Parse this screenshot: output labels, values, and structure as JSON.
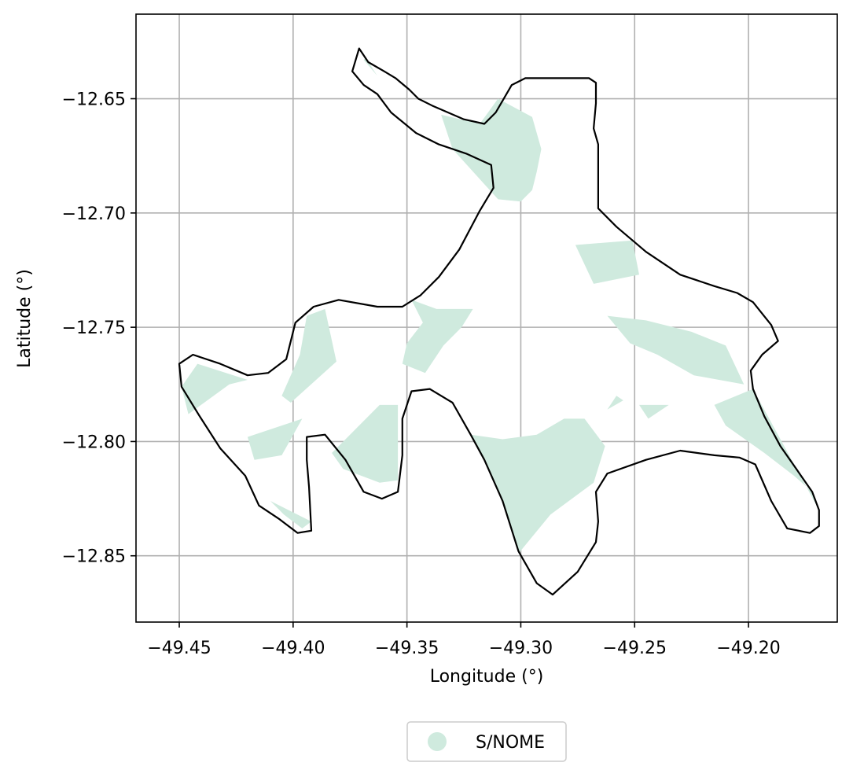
{
  "chart_data": {
    "type": "map",
    "xlabel": "Longitude (°)",
    "ylabel": "Latitude (°)",
    "xlim": [
      -49.469,
      -49.161
    ],
    "ylim": [
      -12.879,
      -12.613
    ],
    "x_ticks": [
      -49.45,
      -49.4,
      -49.35,
      -49.3,
      -49.25,
      -49.2
    ],
    "x_tick_labels": [
      "−49.45",
      "−49.40",
      "−49.35",
      "−49.30",
      "−49.25",
      "−49.20"
    ],
    "y_ticks": [
      -12.65,
      -12.7,
      -12.75,
      -12.8,
      -12.85
    ],
    "y_tick_labels": [
      "−12.65",
      "−12.70",
      "−12.75",
      "−12.80",
      "−12.85"
    ],
    "grid": true,
    "legend": {
      "placement": "bottom-center",
      "entries": [
        {
          "label": "S/NOME",
          "color": "#cfeade"
        }
      ]
    },
    "colors": {
      "fill": "#cfeade",
      "boundary": "#000000",
      "grid": "#b0b0b0"
    },
    "boundary": [
      [
        -49.371,
        -12.628
      ],
      [
        -49.367,
        -12.634
      ],
      [
        -49.36,
        -12.638
      ],
      [
        -49.355,
        -12.641
      ],
      [
        -49.349,
        -12.646
      ],
      [
        -49.345,
        -12.65
      ],
      [
        -49.339,
        -12.653
      ],
      [
        -49.332,
        -12.656
      ],
      [
        -49.325,
        -12.659
      ],
      [
        -49.316,
        -12.661
      ],
      [
        -49.311,
        -12.656
      ],
      [
        -49.304,
        -12.644
      ],
      [
        -49.298,
        -12.641
      ],
      [
        -49.27,
        -12.641
      ],
      [
        -49.267,
        -12.643
      ],
      [
        -49.267,
        -12.652
      ],
      [
        -49.268,
        -12.663
      ],
      [
        -49.266,
        -12.67
      ],
      [
        -49.266,
        -12.687
      ],
      [
        -49.266,
        -12.698
      ],
      [
        -49.258,
        -12.706
      ],
      [
        -49.245,
        -12.717
      ],
      [
        -49.23,
        -12.727
      ],
      [
        -49.215,
        -12.732
      ],
      [
        -49.205,
        -12.735
      ],
      [
        -49.198,
        -12.739
      ],
      [
        -49.19,
        -12.749
      ],
      [
        -49.187,
        -12.756
      ],
      [
        -49.194,
        -12.762
      ],
      [
        -49.199,
        -12.769
      ],
      [
        -49.198,
        -12.777
      ],
      [
        -49.193,
        -12.789
      ],
      [
        -49.186,
        -12.802
      ],
      [
        -49.179,
        -12.812
      ],
      [
        -49.172,
        -12.822
      ],
      [
        -49.169,
        -12.83
      ],
      [
        -49.169,
        -12.837
      ],
      [
        -49.173,
        -12.84
      ],
      [
        -49.183,
        -12.838
      ],
      [
        -49.19,
        -12.826
      ],
      [
        -49.197,
        -12.81
      ],
      [
        -49.204,
        -12.807
      ],
      [
        -49.215,
        -12.806
      ],
      [
        -49.23,
        -12.804
      ],
      [
        -49.245,
        -12.808
      ],
      [
        -49.262,
        -12.814
      ],
      [
        -49.267,
        -12.822
      ],
      [
        -49.266,
        -12.835
      ],
      [
        -49.267,
        -12.844
      ],
      [
        -49.275,
        -12.857
      ],
      [
        -49.286,
        -12.867
      ],
      [
        -49.293,
        -12.862
      ],
      [
        -49.301,
        -12.848
      ],
      [
        -49.308,
        -12.826
      ],
      [
        -49.316,
        -12.808
      ],
      [
        -49.322,
        -12.797
      ],
      [
        -49.33,
        -12.783
      ],
      [
        -49.34,
        -12.777
      ],
      [
        -49.348,
        -12.778
      ],
      [
        -49.352,
        -12.79
      ],
      [
        -49.352,
        -12.806
      ],
      [
        -49.354,
        -12.822
      ],
      [
        -49.361,
        -12.825
      ],
      [
        -49.369,
        -12.822
      ],
      [
        -49.377,
        -12.808
      ],
      [
        -49.386,
        -12.797
      ],
      [
        -49.394,
        -12.798
      ],
      [
        -49.394,
        -12.808
      ],
      [
        -49.393,
        -12.82
      ],
      [
        -49.392,
        -12.839
      ],
      [
        -49.398,
        -12.84
      ],
      [
        -49.406,
        -12.834
      ],
      [
        -49.415,
        -12.828
      ],
      [
        -49.421,
        -12.815
      ],
      [
        -49.432,
        -12.803
      ],
      [
        -49.441,
        -12.789
      ],
      [
        -49.449,
        -12.776
      ],
      [
        -49.45,
        -12.766
      ],
      [
        -49.444,
        -12.762
      ],
      [
        -49.432,
        -12.766
      ],
      [
        -49.42,
        -12.771
      ],
      [
        -49.411,
        -12.77
      ],
      [
        -49.403,
        -12.764
      ],
      [
        -49.399,
        -12.748
      ],
      [
        -49.391,
        -12.741
      ],
      [
        -49.38,
        -12.738
      ],
      [
        -49.363,
        -12.741
      ],
      [
        -49.352,
        -12.741
      ],
      [
        -49.344,
        -12.736
      ],
      [
        -49.336,
        -12.728
      ],
      [
        -49.327,
        -12.716
      ],
      [
        -49.318,
        -12.699
      ],
      [
        -49.312,
        -12.689
      ],
      [
        -49.313,
        -12.679
      ],
      [
        -49.324,
        -12.674
      ],
      [
        -49.336,
        -12.67
      ],
      [
        -49.346,
        -12.665
      ],
      [
        -49.357,
        -12.656
      ],
      [
        -49.363,
        -12.648
      ],
      [
        -49.369,
        -12.644
      ],
      [
        -49.374,
        -12.638
      ]
    ],
    "regions": [
      [
        [
          -49.368,
          -12.632
        ],
        [
          -49.365,
          -12.637
        ],
        [
          -49.363,
          -12.64
        ],
        [
          -49.369,
          -12.633
        ]
      ],
      [
        [
          -49.335,
          -12.657
        ],
        [
          -49.318,
          -12.661
        ],
        [
          -49.31,
          -12.65
        ],
        [
          -49.295,
          -12.658
        ],
        [
          -49.291,
          -12.672
        ],
        [
          -49.293,
          -12.682
        ],
        [
          -49.295,
          -12.69
        ],
        [
          -49.3,
          -12.695
        ],
        [
          -49.31,
          -12.694
        ],
        [
          -49.33,
          -12.672
        ]
      ],
      [
        [
          -49.276,
          -12.714
        ],
        [
          -49.251,
          -12.712
        ],
        [
          -49.248,
          -12.727
        ],
        [
          -49.268,
          -12.731
        ]
      ],
      [
        [
          -49.348,
          -12.738
        ],
        [
          -49.343,
          -12.748
        ],
        [
          -49.35,
          -12.757
        ],
        [
          -49.352,
          -12.766
        ],
        [
          -49.342,
          -12.77
        ],
        [
          -49.334,
          -12.758
        ],
        [
          -49.326,
          -12.75
        ],
        [
          -49.321,
          -12.742
        ],
        [
          -49.337,
          -12.742
        ]
      ],
      [
        [
          -49.394,
          -12.745
        ],
        [
          -49.397,
          -12.762
        ],
        [
          -49.405,
          -12.78
        ],
        [
          -49.401,
          -12.783
        ],
        [
          -49.381,
          -12.765
        ],
        [
          -49.386,
          -12.742
        ]
      ],
      [
        [
          -49.442,
          -12.766
        ],
        [
          -49.449,
          -12.776
        ],
        [
          -49.446,
          -12.788
        ],
        [
          -49.428,
          -12.775
        ],
        [
          -49.42,
          -12.773
        ]
      ],
      [
        [
          -49.362,
          -12.784
        ],
        [
          -49.354,
          -12.784
        ],
        [
          -49.354,
          -12.817
        ],
        [
          -49.362,
          -12.818
        ],
        [
          -49.378,
          -12.812
        ],
        [
          -49.383,
          -12.805
        ]
      ],
      [
        [
          -49.42,
          -12.798
        ],
        [
          -49.396,
          -12.79
        ],
        [
          -49.405,
          -12.806
        ],
        [
          -49.417,
          -12.808
        ]
      ],
      [
        [
          -49.41,
          -12.826
        ],
        [
          -49.404,
          -12.832
        ],
        [
          -49.396,
          -12.838
        ],
        [
          -49.392,
          -12.835
        ]
      ],
      [
        [
          -49.322,
          -12.797
        ],
        [
          -49.308,
          -12.799
        ],
        [
          -49.293,
          -12.797
        ],
        [
          -49.281,
          -12.79
        ],
        [
          -49.272,
          -12.79
        ],
        [
          -49.263,
          -12.802
        ],
        [
          -49.268,
          -12.818
        ],
        [
          -49.287,
          -12.832
        ],
        [
          -49.301,
          -12.849
        ],
        [
          -49.308,
          -12.826
        ],
        [
          -49.316,
          -12.808
        ]
      ],
      [
        [
          -49.262,
          -12.745
        ],
        [
          -49.245,
          -12.747
        ],
        [
          -49.225,
          -12.752
        ],
        [
          -49.21,
          -12.758
        ],
        [
          -49.202,
          -12.775
        ],
        [
          -49.224,
          -12.771
        ],
        [
          -49.24,
          -12.762
        ],
        [
          -49.252,
          -12.757
        ]
      ],
      [
        [
          -49.198,
          -12.777
        ],
        [
          -49.215,
          -12.784
        ],
        [
          -49.21,
          -12.793
        ],
        [
          -49.193,
          -12.805
        ],
        [
          -49.18,
          -12.815
        ],
        [
          -49.172,
          -12.822
        ],
        [
          -49.169,
          -12.83
        ]
      ],
      [
        [
          -49.258,
          -12.78
        ],
        [
          -49.262,
          -12.786
        ],
        [
          -49.255,
          -12.782
        ]
      ],
      [
        [
          -49.248,
          -12.784
        ],
        [
          -49.244,
          -12.79
        ],
        [
          -49.235,
          -12.784
        ]
      ]
    ]
  }
}
